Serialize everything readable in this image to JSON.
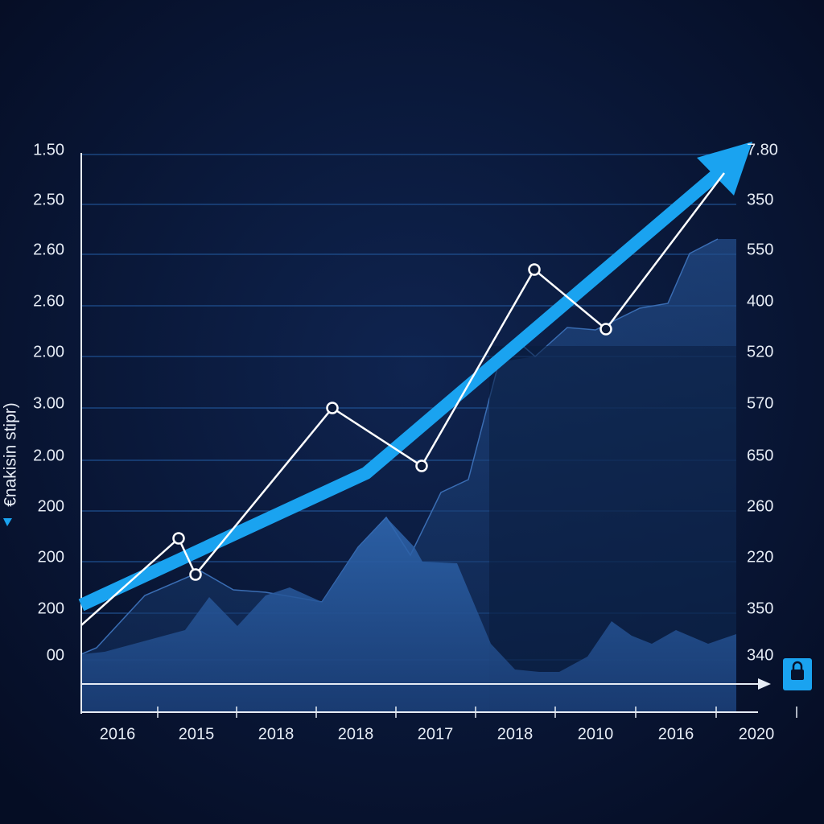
{
  "y_axis_title": "€nakisin stipr)",
  "y_axis_left": [
    "1.50",
    "2.50",
    "2.60",
    "2.60",
    "2.00",
    "3.00",
    "2.00",
    "200",
    "200",
    "200",
    "00"
  ],
  "y_axis_right": [
    "7.80",
    "350",
    "550",
    "400",
    "520",
    "570",
    "650",
    "260",
    "220",
    "350",
    "340"
  ],
  "x_axis": [
    "2016",
    "2015",
    "2018",
    "2018",
    "2017",
    "2018",
    "2010",
    "2016",
    "2020"
  ]
}
